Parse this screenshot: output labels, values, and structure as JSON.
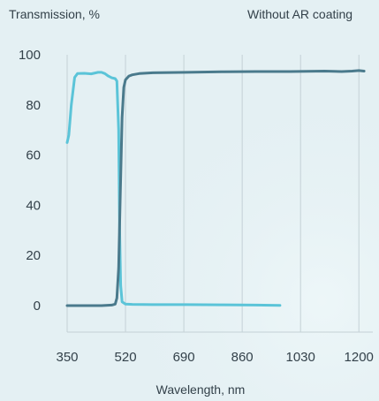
{
  "chart_data": {
    "type": "line",
    "title": "",
    "ylabel": "Transmission, %",
    "xlabel": "Wavelength, nm",
    "annotation": "Without AR coating",
    "xlim": [
      350,
      1220
    ],
    "ylim": [
      -5,
      100
    ],
    "xticks": [
      350,
      520,
      690,
      860,
      1030,
      1200
    ],
    "yticks": [
      0,
      20,
      40,
      60,
      80,
      100
    ],
    "grid_x": true,
    "grid_y": false,
    "series": [
      {
        "color": "#5bc4d8",
        "x": [
          350,
          355,
          362,
          372,
          380,
          400,
          420,
          440,
          450,
          460,
          470,
          480,
          490,
          495,
          500,
          503,
          506,
          510,
          520,
          540,
          600,
          700,
          800,
          900,
          970
        ],
        "y": [
          65,
          68,
          80,
          91,
          92.5,
          92.6,
          92.4,
          93,
          93,
          92.5,
          91.5,
          90.8,
          90.5,
          89.5,
          70,
          30,
          8,
          1.5,
          0.6,
          0.5,
          0.4,
          0.4,
          0.3,
          0.2,
          0.1
        ]
      },
      {
        "color": "#4a7a8c",
        "x": [
          350,
          400,
          450,
          480,
          490,
          495,
          500,
          505,
          510,
          515,
          520,
          530,
          540,
          560,
          600,
          700,
          800,
          900,
          1000,
          1100,
          1150,
          1180,
          1200,
          1215
        ],
        "y": [
          0,
          0,
          0,
          0.2,
          0.6,
          3,
          15,
          45,
          75,
          87,
          90,
          91.5,
          92,
          92.5,
          92.8,
          93,
          93.2,
          93.3,
          93.3,
          93.5,
          93.3,
          93.5,
          93.7,
          93.5
        ]
      }
    ]
  }
}
